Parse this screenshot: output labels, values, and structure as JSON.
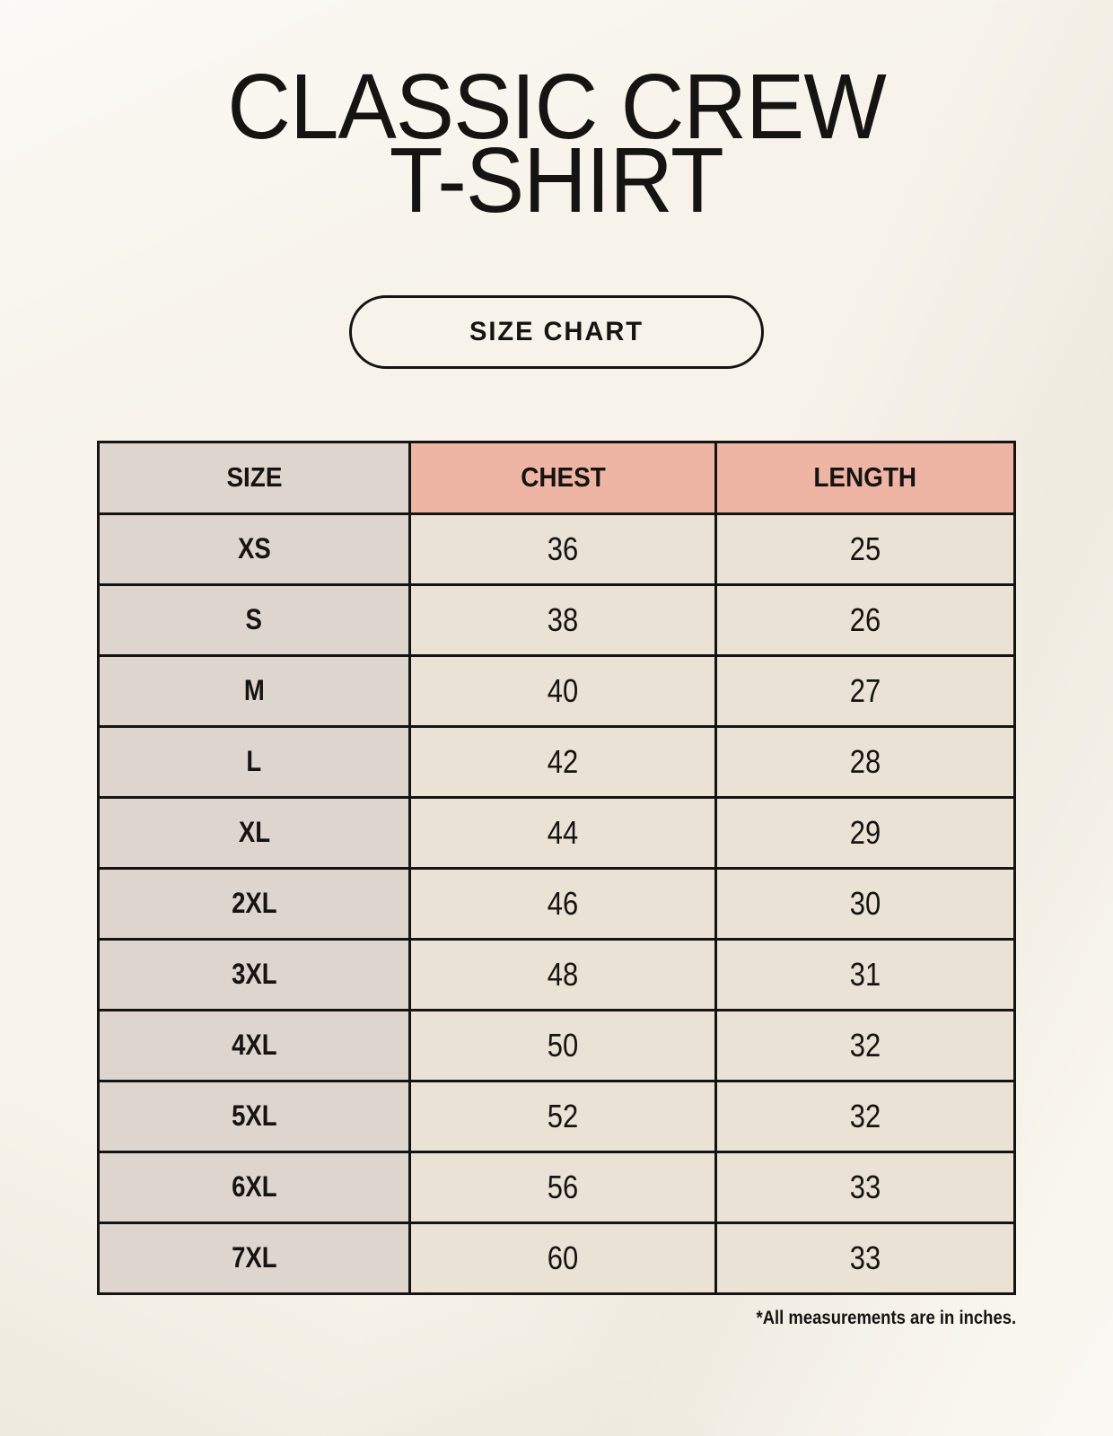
{
  "page": {
    "title_line1": "CLASSIC CREW",
    "title_line2": "T-SHIRT",
    "badge_label": "SIZE CHART",
    "footnote": "*All measurements are in inches."
  },
  "colors": {
    "bg": "#f7f3ea",
    "accent": "#efb5a4",
    "gray_col": "#ddd5ce",
    "cream": "#e9e2d5",
    "line": "#161412",
    "ink": "#161412"
  },
  "table": {
    "columns": [
      "SIZE",
      "CHEST",
      "LENGTH"
    ],
    "rows": [
      {
        "size": "XS",
        "chest": "36",
        "length": "25"
      },
      {
        "size": "S",
        "chest": "38",
        "length": "26"
      },
      {
        "size": "M",
        "chest": "40",
        "length": "27"
      },
      {
        "size": "L",
        "chest": "42",
        "length": "28"
      },
      {
        "size": "XL",
        "chest": "44",
        "length": "29"
      },
      {
        "size": "2XL",
        "chest": "46",
        "length": "30"
      },
      {
        "size": "3XL",
        "chest": "48",
        "length": "31"
      },
      {
        "size": "4XL",
        "chest": "50",
        "length": "32"
      },
      {
        "size": "5XL",
        "chest": "52",
        "length": "32"
      },
      {
        "size": "6XL",
        "chest": "56",
        "length": "33"
      },
      {
        "size": "7XL",
        "chest": "60",
        "length": "33"
      }
    ]
  }
}
